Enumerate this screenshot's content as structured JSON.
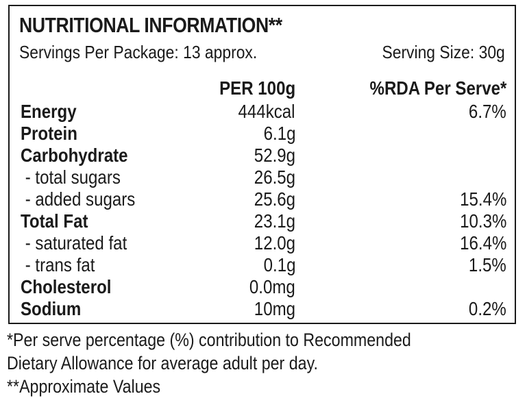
{
  "label": {
    "title": "NUTRITIONAL INFORMATION**",
    "servings_per_package": "Servings Per Package: 13 approx.",
    "serving_size": "Serving Size: 30g",
    "col_per100": "PER 100g",
    "col_rda": "%RDA Per Serve*",
    "rows": [
      {
        "name": "Energy",
        "bold": true,
        "per100": "444kcal",
        "rda": "6.7%"
      },
      {
        "name": "Protein",
        "bold": true,
        "per100": "6.1g",
        "rda": ""
      },
      {
        "name": "Carbohydrate",
        "bold": true,
        "per100": "52.9g",
        "rda": ""
      },
      {
        "name": " - total sugars",
        "bold": false,
        "per100": "26.5g",
        "rda": ""
      },
      {
        "name": " - added sugars",
        "bold": false,
        "per100": "25.6g",
        "rda": "15.4%"
      },
      {
        "name": "Total Fat",
        "bold": true,
        "per100": "23.1g",
        "rda": "10.3%"
      },
      {
        "name": " - saturated fat",
        "bold": false,
        "per100": "12.0g",
        "rda": "16.4%"
      },
      {
        "name": " - trans fat",
        "bold": false,
        "per100": "0.1g",
        "rda": "1.5%"
      },
      {
        "name": "Cholesterol",
        "bold": true,
        "per100": "0.0mg",
        "rda": ""
      },
      {
        "name": "Sodium",
        "bold": true,
        "per100": "10mg",
        "rda": "0.2%"
      }
    ]
  },
  "footnotes": {
    "line1": "*Per serve percentage (%) contribution to Recommended",
    "line2": "Dietary Allowance for average adult per day.",
    "line3": "**Approximate Values"
  }
}
